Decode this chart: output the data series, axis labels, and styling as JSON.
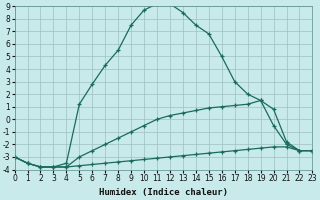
{
  "xlabel": "Humidex (Indice chaleur)",
  "xlim": [
    0,
    23
  ],
  "ylim": [
    -4,
    9
  ],
  "xticks": [
    0,
    1,
    2,
    3,
    4,
    5,
    6,
    7,
    8,
    9,
    10,
    11,
    12,
    13,
    14,
    15,
    16,
    17,
    18,
    19,
    20,
    21,
    22,
    23
  ],
  "yticks": [
    -4,
    -3,
    -2,
    -1,
    0,
    1,
    2,
    3,
    4,
    5,
    6,
    7,
    8,
    9
  ],
  "background_color": "#c8eaea",
  "grid_color": "#9dbfbf",
  "line_color": "#1a6b5a",
  "curves": [
    {
      "x": [
        0,
        1,
        2,
        3,
        4,
        5,
        6,
        7,
        8,
        9,
        10,
        11,
        12,
        13,
        14,
        15,
        16,
        17,
        18,
        19,
        20,
        21,
        22,
        23
      ],
      "y": [
        -3,
        -3.5,
        -3.8,
        -3.8,
        -3.8,
        -3.7,
        -3.6,
        -3.5,
        -3.4,
        -3.3,
        -3.2,
        -3.1,
        -3,
        -2.9,
        -2.8,
        -2.7,
        -2.6,
        -2.5,
        -2.4,
        -2.3,
        -2.2,
        -2.2,
        -2.5,
        -2.5
      ]
    },
    {
      "x": [
        0,
        1,
        2,
        3,
        4,
        5,
        6,
        7,
        8,
        9,
        10,
        11,
        12,
        13,
        14,
        15,
        16,
        17,
        18,
        19,
        20,
        21,
        22,
        23
      ],
      "y": [
        -3,
        -3.5,
        -3.8,
        -3.8,
        -3.8,
        -3,
        -2.5,
        -2,
        -1.5,
        -1,
        -0.5,
        0,
        0.3,
        0.5,
        0.7,
        0.9,
        1.0,
        1.1,
        1.2,
        1.5,
        0.8,
        -1.8,
        -2.5,
        -2.5
      ]
    },
    {
      "x": [
        0,
        1,
        2,
        3,
        4,
        5,
        6,
        7,
        8,
        9,
        10,
        11,
        12,
        13,
        14,
        15,
        16,
        17,
        18,
        19,
        20,
        21,
        22,
        23
      ],
      "y": [
        -3,
        -3.5,
        -3.8,
        -3.8,
        -3.5,
        1.2,
        2.8,
        4.3,
        5.5,
        7.5,
        8.7,
        9.2,
        9.2,
        8.5,
        7.5,
        6.8,
        5,
        3,
        2,
        1.5,
        -0.5,
        -2,
        -2.5,
        -2.5
      ]
    }
  ]
}
